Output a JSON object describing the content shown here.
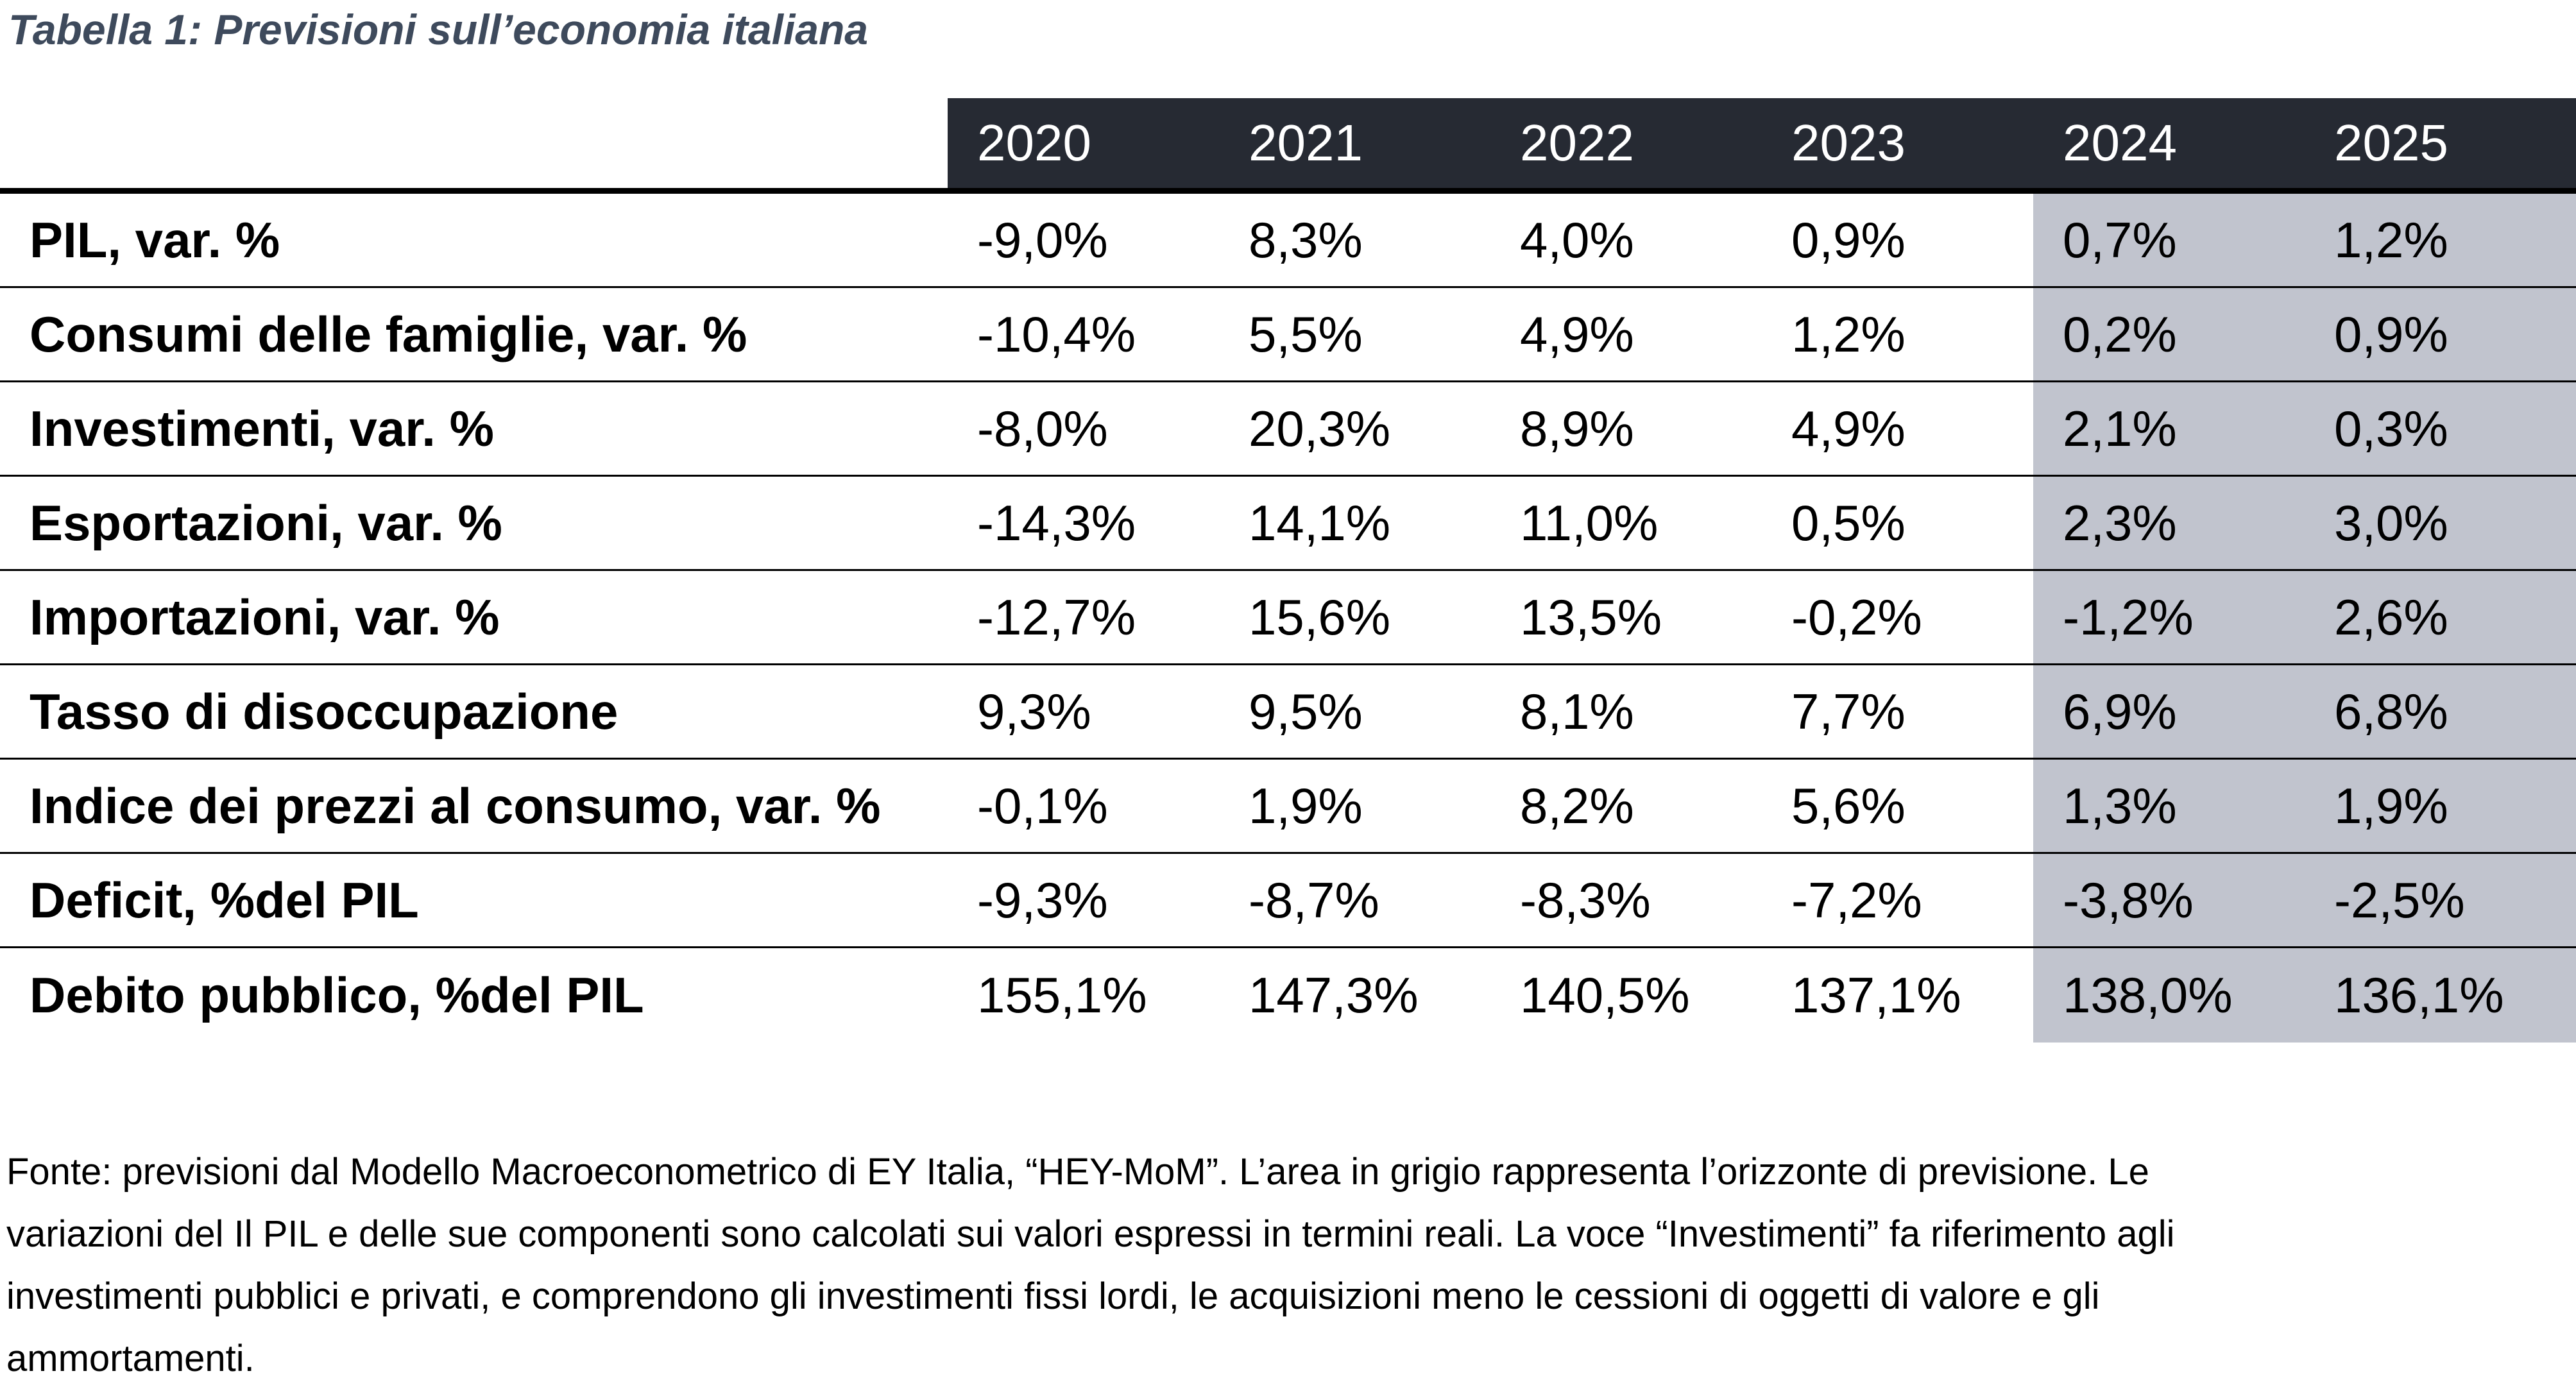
{
  "chart_data": {
    "type": "table",
    "title": "Tabella 1: Previsioni sull’economia italiana",
    "columns": [
      "2020",
      "2021",
      "2022",
      "2023",
      "2024",
      "2025"
    ],
    "rows": [
      {
        "label": "PIL, var. %",
        "values": [
          "-9,0%",
          "8,3%",
          "4,0%",
          "0,9%",
          "0,7%",
          "1,2%"
        ]
      },
      {
        "label": "Consumi delle famiglie, var. %",
        "values": [
          "-10,4%",
          "5,5%",
          "4,9%",
          "1,2%",
          "0,2%",
          "0,9%"
        ]
      },
      {
        "label": "Investimenti, var. %",
        "values": [
          "-8,0%",
          "20,3%",
          "8,9%",
          "4,9%",
          "2,1%",
          "0,3%"
        ]
      },
      {
        "label": "Esportazioni, var. %",
        "values": [
          "-14,3%",
          "14,1%",
          "11,0%",
          "0,5%",
          "2,3%",
          "3,0%"
        ]
      },
      {
        "label": "Importazioni, var. %",
        "values": [
          "-12,7%",
          "15,6%",
          "13,5%",
          "-0,2%",
          "-1,2%",
          "2,6%"
        ]
      },
      {
        "label": "Tasso di disoccupazione",
        "values": [
          "9,3%",
          "9,5%",
          "8,1%",
          "7,7%",
          "6,9%",
          "6,8%"
        ]
      },
      {
        "label": "Indice dei prezzi al consumo, var. %",
        "values": [
          "-0,1%",
          "1,9%",
          "8,2%",
          "5,6%",
          "1,3%",
          "1,9%"
        ]
      },
      {
        "label": "Deficit, %del PIL",
        "values": [
          "-9,3%",
          "-8,7%",
          "-8,3%",
          "-7,2%",
          "-3,8%",
          "-2,5%"
        ]
      },
      {
        "label": "Debito pubblico, %del PIL",
        "values": [
          "155,1%",
          "147,3%",
          "140,5%",
          "137,1%",
          "138,0%",
          "136,1%"
        ]
      }
    ],
    "forecast_columns": [
      "2024",
      "2025"
    ],
    "forecast_start_index": 4
  },
  "footnote": {
    "lines": [
      "Fonte: previsioni dal Modello Macroeconometrico di EY Italia, “HEY-MoM”. L’area in grigio rappresenta l’orizzonte di previsione. Le",
      "variazioni del Il PIL e delle sue componenti sono calcolati sui valori espressi in termini reali. La voce “Investimenti” fa riferimento agli",
      "investimenti pubblici e privati, e comprendono gli investimenti fissi lordi, le acquisizioni meno le cessioni di oggetti di valore e gli",
      "ammortamenti."
    ]
  },
  "colors": {
    "header_background": "#262a33",
    "header_text": "#ffffff",
    "forecast_area_background": "#c1c4ce",
    "caption_text": "#3e4a5c",
    "grid_line": "#000000",
    "body_text": "#000000"
  }
}
